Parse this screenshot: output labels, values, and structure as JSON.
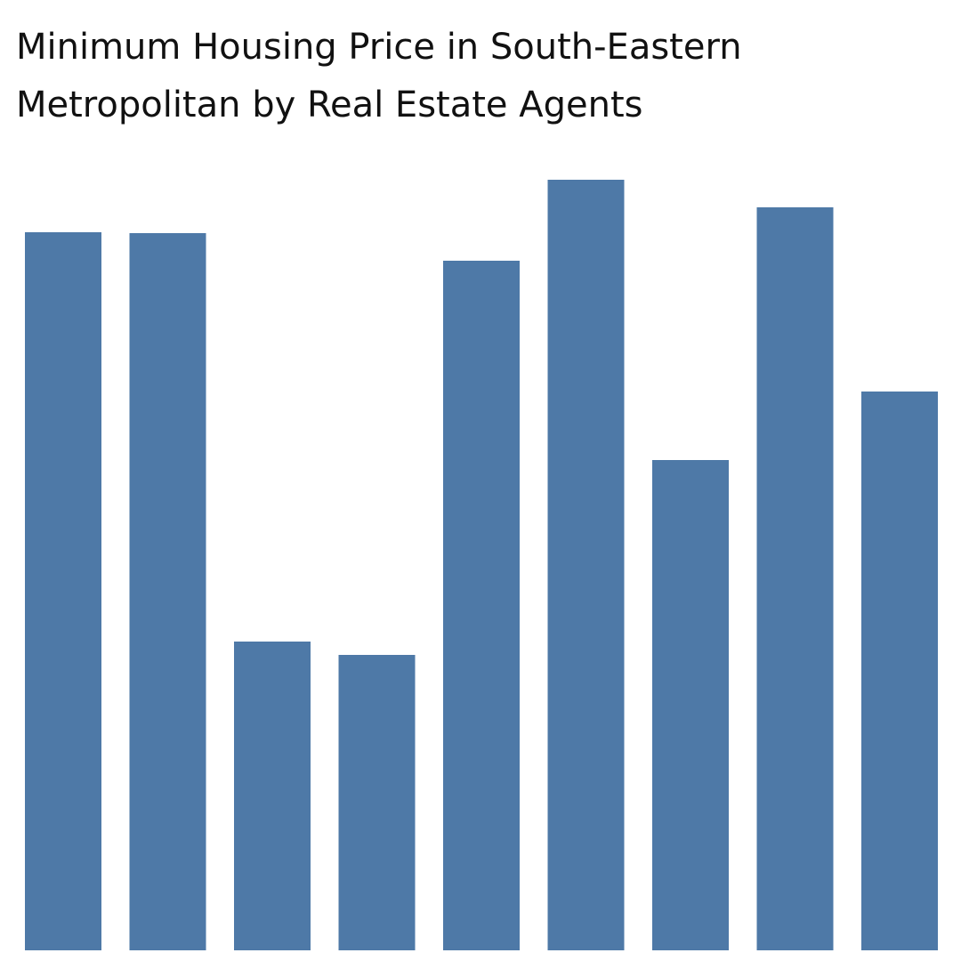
{
  "chart_data": {
    "type": "bar",
    "title": [
      "Minimum Housing Price in South-Eastern",
      "Metropolitan by Real Estate Agents"
    ],
    "categories": [
      null,
      null,
      null,
      null,
      null,
      null,
      null,
      null,
      null
    ],
    "values": [
      807,
      806,
      347,
      332,
      775,
      866,
      551,
      835,
      628
    ],
    "color": "#4e79a7",
    "ylim": [
      0,
      900
    ]
  }
}
